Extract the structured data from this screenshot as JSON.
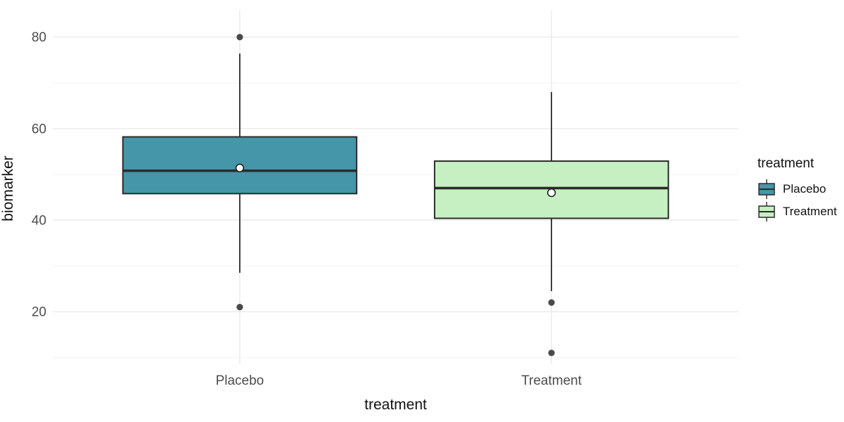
{
  "chart_data": {
    "type": "boxplot",
    "title": "",
    "xlabel": "treatment",
    "ylabel": "biomarker",
    "categories": [
      "Placebo",
      "Treatment"
    ],
    "y_major_ticks": [
      20,
      40,
      60,
      80
    ],
    "y_minor_ticks": [
      10,
      30,
      50,
      70
    ],
    "ylim": [
      8.5,
      85.8
    ],
    "grid": "major+minor horizontal, major vertical at categories",
    "legend_position": "right",
    "series": [
      {
        "name": "Placebo",
        "fill": "#4496a8",
        "whisker_low": 28.5,
        "q1": 45.8,
        "median": 50.8,
        "q3": 58.2,
        "whisker_high": 76.4,
        "mean": 51.4,
        "outliers": [
          80,
          21
        ]
      },
      {
        "name": "Treatment",
        "fill": "#c6efc2",
        "whisker_low": 24.5,
        "q1": 40.4,
        "median": 47,
        "q3": 52.9,
        "whisker_high": 68,
        "mean": 46,
        "outliers": [
          22,
          11
        ]
      }
    ],
    "legend": {
      "title": "treatment",
      "entries": [
        {
          "label": "Placebo",
          "fill": "#4496a8"
        },
        {
          "label": "Treatment",
          "fill": "#c6efc2"
        }
      ]
    }
  },
  "style_colors": {
    "box_stroke": "#2b2b2b",
    "median_stroke": "#2b2b2b",
    "whisker_stroke": "#2b2b2b",
    "outlier_fill": "#4a4a4a",
    "mean_fill": "#ffffff",
    "mean_stroke": "#222222",
    "grid_major": "#e8e8e8",
    "grid_minor": "#f3f3f3",
    "tick_label": "#4d4d4d",
    "axis_title": "#111111"
  }
}
